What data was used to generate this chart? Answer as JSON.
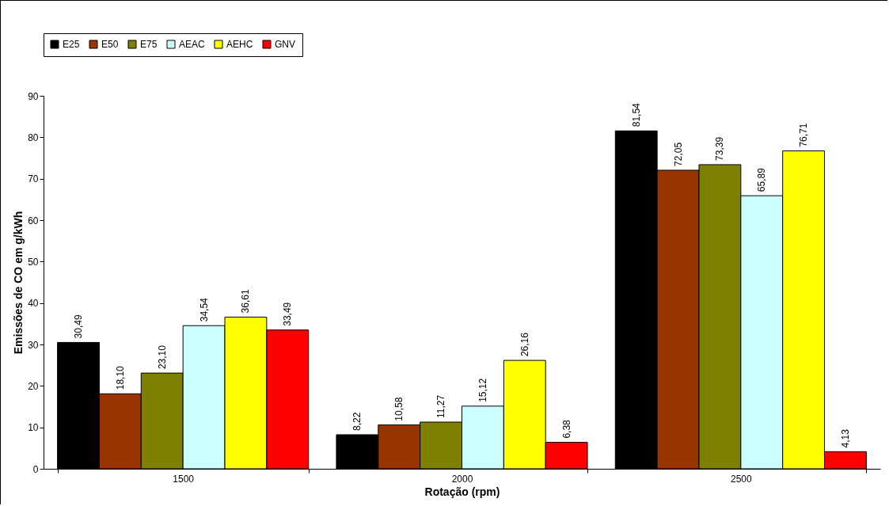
{
  "chart_data": {
    "type": "bar",
    "xlabel": "Rotação (rpm)",
    "ylabel": "Emissões de CO em g/kWh",
    "categories": [
      "1500",
      "2000",
      "2500"
    ],
    "ylim": [
      0,
      90
    ],
    "yticks": [
      0,
      10,
      20,
      30,
      40,
      50,
      60,
      70,
      80,
      90
    ],
    "grid": false,
    "legend": "top",
    "series": [
      {
        "name": "E25",
        "color": "#000000",
        "values": [
          30.49,
          8.22,
          81.54
        ],
        "value_labels": [
          "30,49",
          "8,22",
          "81,54"
        ]
      },
      {
        "name": "E50",
        "color": "#993300",
        "values": [
          18.1,
          10.58,
          72.05
        ],
        "value_labels": [
          "18,10",
          "10,58",
          "72,05"
        ]
      },
      {
        "name": "E75",
        "color": "#808000",
        "values": [
          23.1,
          11.27,
          73.39
        ],
        "value_labels": [
          "23,10",
          "11,27",
          "73,39"
        ]
      },
      {
        "name": "AEAC",
        "color": "#ccffff",
        "values": [
          34.54,
          15.12,
          65.89
        ],
        "value_labels": [
          "34,54",
          "15,12",
          "65,89"
        ]
      },
      {
        "name": "AEHC",
        "color": "#ffff00",
        "values": [
          36.61,
          26.16,
          76.71
        ],
        "value_labels": [
          "36,61",
          "26,16",
          "76,71"
        ]
      },
      {
        "name": "GNV",
        "color": "#ff0000",
        "values": [
          33.49,
          6.38,
          4.13
        ],
        "value_labels": [
          "33,49",
          "6,38",
          "4,13"
        ]
      }
    ]
  }
}
